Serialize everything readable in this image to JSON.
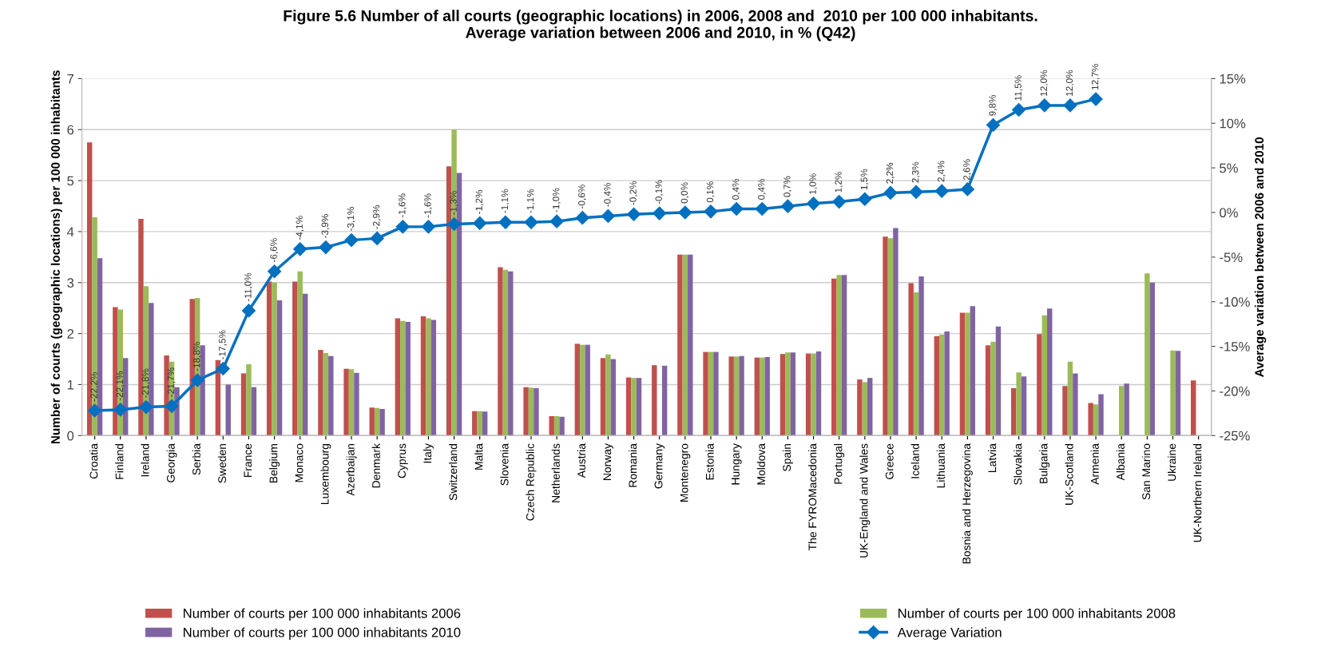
{
  "chart_data": {
    "type": "bar",
    "title": "Figure 5.6 Number of all courts (geographic locations) in 2006, 2008 and  2010 per 100 000 inhabitants.\nAverage variation between 2006 and 2010, in % (Q42)",
    "ylabel": "Number of courts (geographic locations) per 100 000 inhabitants",
    "y2label": "Average variation between 2006 and 2010",
    "categories": [
      "Croatia",
      "Finland",
      "Ireland",
      "Georgia",
      "Serbia",
      "Sweden",
      "France",
      "Belgium",
      "Monaco",
      "Luxembourg",
      "Azerbaijan",
      "Denmark",
      "Cyprus",
      "Italy",
      "Switzerland",
      "Malta",
      "Slovenia",
      "Czech Republic",
      "Netherlands",
      "Austria",
      "Norway",
      "Romania",
      "Germany",
      "Montenegro",
      "Estonia",
      "Hungary",
      "Moldova",
      "Spain",
      "The FYROMacedonia",
      "Portugal",
      "UK-England and Wales",
      "Greece",
      "Iceland",
      "Lithuania",
      "Bosnia and Herzegovina",
      "Latvia",
      "Slovakia",
      "Bulgaria",
      "UK-Scotland",
      "Armenia",
      "Albania",
      "San Marino",
      "Ukraine",
      "UK-Northern Ireland"
    ],
    "series": [
      {
        "name": "Number of courts per 100 000 inhabitants 2006",
        "color": "#c0504d",
        "values": [
          5.75,
          2.52,
          4.25,
          1.57,
          2.68,
          1.48,
          1.22,
          3.02,
          3.02,
          1.68,
          1.31,
          0.55,
          2.3,
          2.34,
          5.28,
          0.48,
          3.3,
          0.95,
          0.38,
          1.8,
          1.52,
          1.14,
          1.38,
          3.55,
          1.64,
          1.55,
          1.53,
          1.6,
          1.61,
          3.08,
          1.1,
          3.9,
          2.99,
          1.95,
          2.41,
          1.77,
          0.93,
          1.99,
          0.97,
          0.64,
          null,
          null,
          null,
          1.08
        ]
      },
      {
        "name": "Number of courts per 100 000 inhabitants 2008",
        "color": "#9bbb59",
        "values": [
          4.28,
          2.47,
          2.93,
          1.45,
          2.7,
          null,
          1.4,
          3.0,
          3.22,
          1.62,
          1.3,
          0.54,
          2.25,
          2.3,
          6.0,
          0.48,
          3.25,
          0.94,
          0.38,
          1.78,
          1.59,
          1.13,
          null,
          3.55,
          1.64,
          1.55,
          1.53,
          1.63,
          1.61,
          3.15,
          1.05,
          3.87,
          2.81,
          1.98,
          2.41,
          1.84,
          1.24,
          2.36,
          1.45,
          0.61,
          0.97,
          3.18,
          1.67,
          null
        ]
      },
      {
        "name": "Number of courts per 100 000 inhabitants 2010",
        "color": "#8064a2",
        "values": [
          3.48,
          1.52,
          2.6,
          0.95,
          1.77,
          1.0,
          0.95,
          2.65,
          2.78,
          1.56,
          1.23,
          0.52,
          2.23,
          2.27,
          5.15,
          0.47,
          3.22,
          0.93,
          0.37,
          1.78,
          1.5,
          1.13,
          1.37,
          3.55,
          1.64,
          1.56,
          1.54,
          1.63,
          1.65,
          3.15,
          1.13,
          4.07,
          3.12,
          2.04,
          2.54,
          2.14,
          1.16,
          2.49,
          1.22,
          0.81,
          1.02,
          3.0,
          1.66,
          null
        ]
      },
      {
        "name": "Average Variation",
        "type": "line",
        "axis": "y2",
        "color": "#0070c0",
        "marker": "diamond",
        "values": [
          -22.2,
          -22.1,
          -21.8,
          -21.7,
          -18.8,
          -17.5,
          -11.0,
          -6.6,
          -4.1,
          -3.9,
          -3.1,
          -2.9,
          -1.6,
          -1.6,
          -1.3,
          -1.2,
          -1.1,
          -1.1,
          -1.0,
          -0.6,
          -0.4,
          -0.2,
          -0.1,
          0.0,
          0.1,
          0.4,
          0.4,
          0.7,
          1.0,
          1.2,
          1.5,
          2.2,
          2.3,
          2.4,
          2.6,
          9.8,
          11.5,
          12.0,
          12.0,
          12.7,
          null,
          null,
          null,
          null
        ],
        "value_labels": [
          "-22,2%",
          "-22,1%",
          "-21,8%",
          "-21,7%",
          "-18,8%",
          "-17,5%",
          "-11,0%",
          "-6,6%",
          "-4,1%",
          "-3,9%",
          "-3,1%",
          "-2,9%",
          "-1,6%",
          "-1,6%",
          "-1,3%",
          "-1,2%",
          "-1,1%",
          "-1,1%",
          "-1,0%",
          "-0,6%",
          "-0,4%",
          "-0,2%",
          "-0,1%",
          "0,0%",
          "0,1%",
          "0,4%",
          "0,4%",
          "0,7%",
          "1,0%",
          "1,2%",
          "1,5%",
          "2,2%",
          "2,3%",
          "2,4%",
          "2,6%",
          "9,8%",
          "11,5%",
          "12,0%",
          "12,0%",
          "12,7%",
          null,
          null,
          null,
          null
        ]
      }
    ],
    "ylim": [
      0,
      7
    ],
    "yticks": [
      0,
      1,
      2,
      3,
      4,
      5,
      6,
      7
    ],
    "y2lim": [
      -25,
      15
    ],
    "y2ticks": [
      {
        "value": -25,
        "label": "-25%"
      },
      {
        "value": -20,
        "label": "-20%"
      },
      {
        "value": -15,
        "label": "-15%"
      },
      {
        "value": -10,
        "label": "-10%"
      },
      {
        "value": -5,
        "label": "-5%"
      },
      {
        "value": 0,
        "label": "0%"
      },
      {
        "value": 5,
        "label": "5%"
      },
      {
        "value": 10,
        "label": "10%"
      },
      {
        "value": 15,
        "label": "15%"
      }
    ],
    "grid": "y",
    "legend": "bottom"
  }
}
